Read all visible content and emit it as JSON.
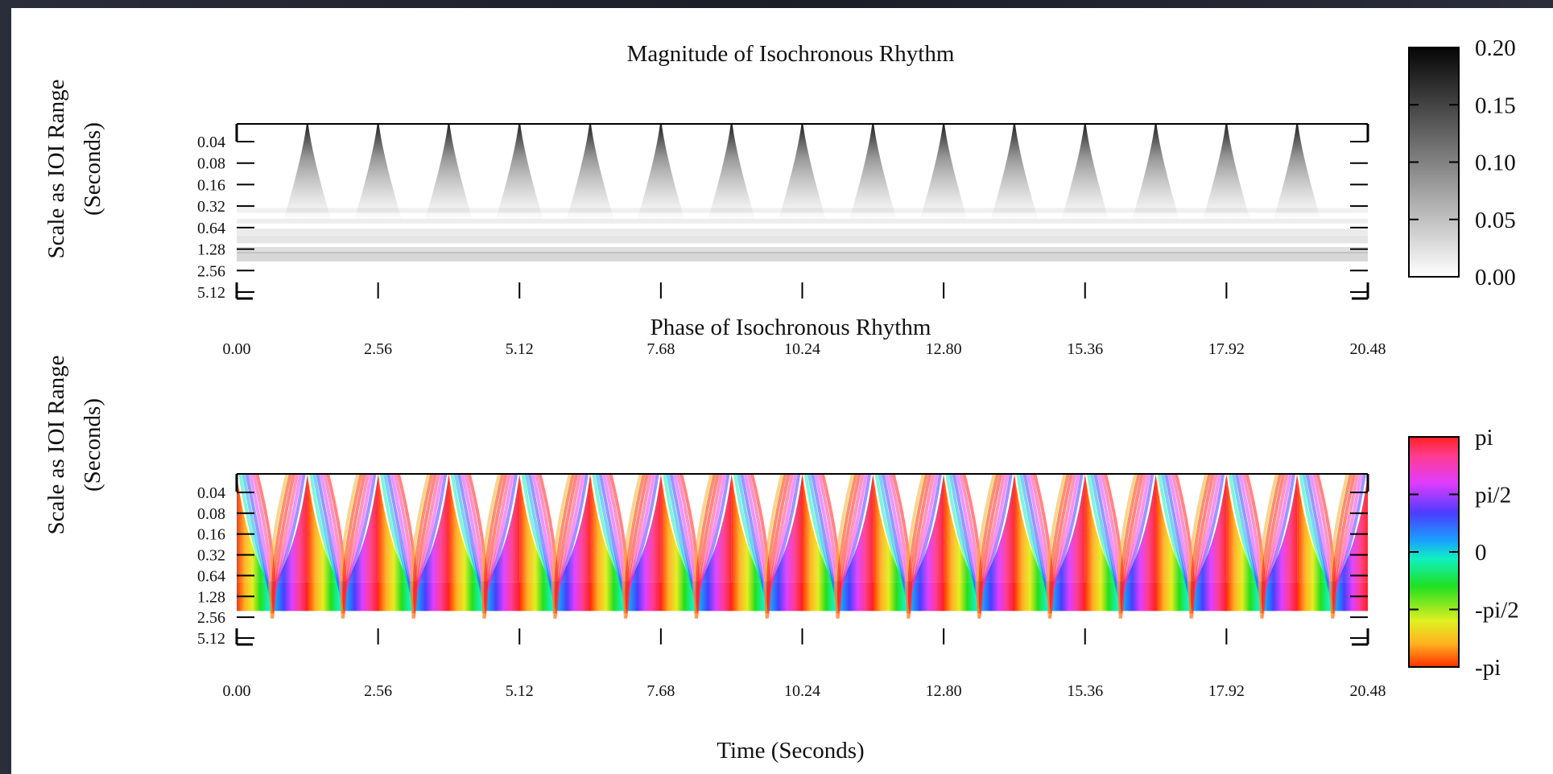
{
  "chart_data": [
    {
      "type": "heatmap",
      "title": "Magnitude of Isochronous Rhythm",
      "ylabel_line1": "Scale as IOI Range",
      "ylabel_line2": "(Seconds)",
      "x_ticks": [
        "0.00",
        "2.56",
        "5.12",
        "7.68",
        "10.24",
        "12.80",
        "15.36",
        "17.92",
        "20.48"
      ],
      "y_ticks": [
        "0.04",
        "0.08",
        "0.16",
        "0.32",
        "0.64",
        "1.28",
        "2.56",
        "5.12"
      ],
      "xlim": [
        0,
        20.48
      ],
      "y_scale": "log2",
      "ioi_seconds": 1.28,
      "onset_times": [
        1.28,
        2.56,
        3.84,
        5.12,
        6.4,
        7.68,
        8.96,
        10.24,
        11.52,
        12.8,
        14.08,
        15.36,
        16.64,
        17.92,
        19.2
      ],
      "colorbar": {
        "label_ticks": [
          "0.20",
          "0.15",
          "0.10",
          "0.05",
          "0.00"
        ],
        "range": [
          0,
          0.2
        ],
        "colormap": "gray_reversed"
      }
    },
    {
      "type": "heatmap",
      "title": "Phase of Isochronous Rhythm",
      "ylabel_line1": "Scale as IOI Range",
      "ylabel_line2": "(Seconds)",
      "x_ticks": [
        "0.00",
        "2.56",
        "5.12",
        "7.68",
        "10.24",
        "12.80",
        "15.36",
        "17.92",
        "20.48"
      ],
      "y_ticks": [
        "0.04",
        "0.08",
        "0.16",
        "0.32",
        "0.64",
        "1.28",
        "2.56",
        "5.12"
      ],
      "xlim": [
        0,
        20.48
      ],
      "y_scale": "log2",
      "ioi_seconds": 1.28,
      "onset_times": [
        0.0,
        1.28,
        2.56,
        3.84,
        5.12,
        6.4,
        7.68,
        8.96,
        10.24,
        11.52,
        12.8,
        14.08,
        15.36,
        16.64,
        17.92,
        19.2,
        20.48
      ],
      "colorbar": {
        "label_ticks": [
          "pi",
          "pi/2",
          "0",
          "-pi/2",
          "-pi"
        ],
        "range": [
          -3.1416,
          3.1416
        ],
        "colormap": "hsv"
      }
    }
  ],
  "xlabel": "Time (Seconds)"
}
